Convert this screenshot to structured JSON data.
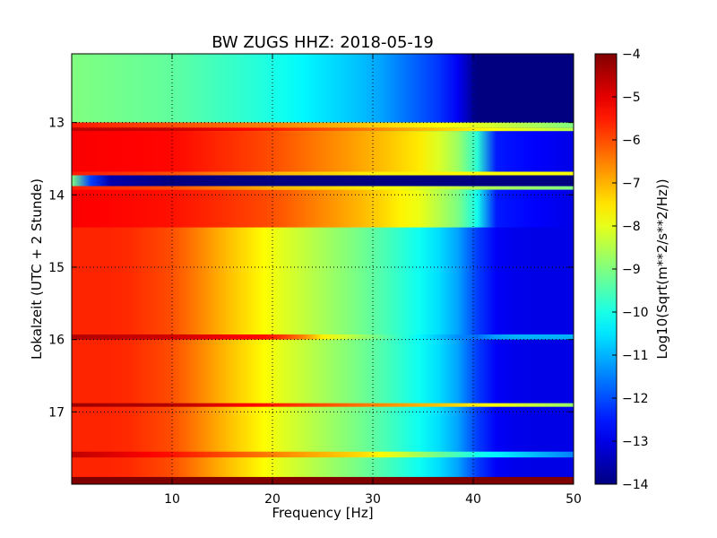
{
  "chart_data": {
    "type": "heatmap",
    "title": "BW ZUGS HHZ: 2018-05-19",
    "xlabel": "Frequency [Hz]",
    "ylabel": "Lokalzeit (UTC + 2 Stunde)",
    "colorbar_label": "Log10(Sqrt(m**2/s**2/Hz))",
    "xlim": [
      0,
      50
    ],
    "ylim": [
      18.0,
      12.05
    ],
    "y_inverted": true,
    "x_ticks": [
      10,
      20,
      30,
      40,
      50
    ],
    "y_ticks": [
      13,
      14,
      15,
      16,
      17
    ],
    "colorbar_ticks": [
      -4,
      -5,
      -6,
      -7,
      -8,
      -9,
      -10,
      -11,
      -12,
      -13,
      -14
    ],
    "color_range": [
      -14,
      -4
    ],
    "colormap": "jet",
    "grid": true,
    "baseline_profile": {
      "freq": [
        0,
        5,
        10,
        15,
        20,
        25,
        30,
        35,
        38,
        40,
        42,
        45,
        50
      ],
      "value": [
        -5.6,
        -5.6,
        -6.0,
        -7.0,
        -7.9,
        -8.6,
        -9.3,
        -10.2,
        -10.9,
        -12.0,
        -12.8,
        -13.0,
        -13.0
      ]
    },
    "bands": [
      {
        "start": 12.05,
        "end": 13.0,
        "profile_freq": [
          0,
          10,
          20,
          30,
          38,
          40,
          50
        ],
        "profile_value": [
          -9.0,
          -9.3,
          -10.0,
          -11.0,
          -12.5,
          -14.0,
          -14.0
        ]
      },
      {
        "start": 13.0,
        "end": 13.07,
        "profile_freq": [
          0,
          20,
          40,
          50
        ],
        "profile_value": [
          -5.5,
          -6.5,
          -8.0,
          -9.0
        ]
      },
      {
        "start": 13.07,
        "end": 13.12,
        "profile_freq": [
          0,
          10,
          20,
          30,
          40,
          50
        ],
        "profile_value": [
          -4.6,
          -4.7,
          -5.5,
          -6.5,
          -7.6,
          -8.5
        ]
      },
      {
        "start": 13.12,
        "end": 13.68,
        "profile_freq": [
          0,
          10,
          20,
          30,
          35,
          40,
          42,
          50
        ],
        "profile_value": [
          -5.2,
          -5.3,
          -6.0,
          -7.0,
          -7.6,
          -9.2,
          -12.5,
          -13.0
        ]
      },
      {
        "start": 13.68,
        "end": 13.73,
        "profile_freq": [
          0,
          10,
          20,
          30,
          40,
          50
        ],
        "profile_value": [
          -5.5,
          -6.0,
          -7.0,
          -7.6,
          -7.7,
          -7.8
        ]
      },
      {
        "start": 13.73,
        "end": 13.88,
        "profile_freq": [
          0,
          1,
          3,
          10,
          20,
          30,
          40,
          50
        ],
        "profile_value": [
          -9.0,
          -11.0,
          -13.5,
          -14.0,
          -14.0,
          -14.0,
          -14.0,
          -14.0
        ]
      },
      {
        "start": 13.88,
        "end": 13.93,
        "profile_freq": [
          0,
          10,
          20,
          30,
          40,
          50
        ],
        "profile_value": [
          -5.5,
          -6.0,
          -7.0,
          -7.6,
          -8.5,
          -9.0
        ]
      },
      {
        "start": 13.93,
        "end": 14.45,
        "profile_freq": [
          0,
          10,
          20,
          30,
          35,
          40,
          42,
          50
        ],
        "profile_value": [
          -5.2,
          -5.4,
          -6.0,
          -7.2,
          -8.0,
          -9.5,
          -12.5,
          -13.0
        ]
      },
      {
        "start": 15.93,
        "end": 16.0,
        "profile_freq": [
          0,
          10,
          20,
          23,
          25,
          40,
          43,
          50
        ],
        "profile_value": [
          -4.5,
          -4.8,
          -5.4,
          -6.5,
          -7.6,
          -11.8,
          -11.0,
          -11.0
        ]
      },
      {
        "start": 16.88,
        "end": 16.93,
        "profile_freq": [
          0,
          10,
          20,
          30,
          40,
          50
        ],
        "profile_value": [
          -4.3,
          -4.5,
          -5.5,
          -6.5,
          -7.5,
          -8.8
        ]
      },
      {
        "start": 17.55,
        "end": 17.63,
        "profile_freq": [
          0,
          10,
          20,
          30,
          40,
          50
        ],
        "profile_value": [
          -4.6,
          -5.4,
          -6.5,
          -7.5,
          -10.0,
          -11.5
        ]
      },
      {
        "start": 17.9,
        "end": 18.0,
        "profile_freq": [
          0,
          50
        ],
        "profile_value": [
          -4.0,
          -4.0
        ]
      }
    ]
  }
}
